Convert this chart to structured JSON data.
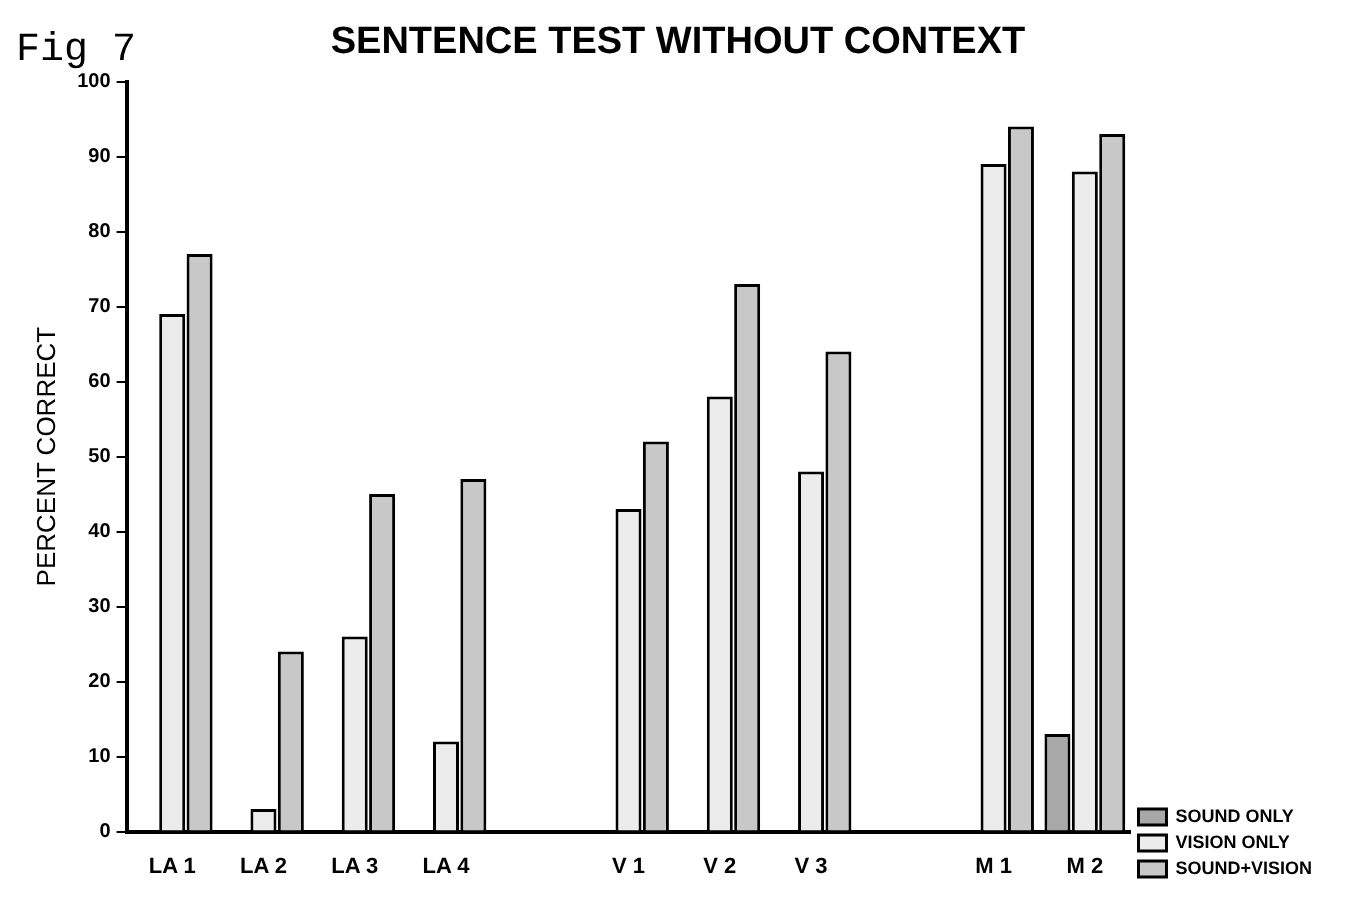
{
  "chart_data": {
    "type": "bar",
    "title": "SENTENCE TEST WITHOUT CONTEXT",
    "ylabel": "PERCENT CORRECT",
    "annotations": [
      "Fig 7"
    ],
    "categories": [
      "LA 1",
      "LA 2",
      "LA 3",
      "LA 4",
      null,
      "V 1",
      "V 2",
      "V 3",
      null,
      "M 1",
      "M 2"
    ],
    "series": [
      {
        "name": "SOUND ONLY",
        "color": "#a8a8a8",
        "values": [
          null,
          null,
          null,
          null,
          null,
          null,
          null,
          null,
          null,
          null,
          13
        ]
      },
      {
        "name": "VISION ONLY",
        "color": "#ececec",
        "values": [
          69,
          3,
          26,
          12,
          null,
          43,
          58,
          48,
          null,
          89,
          88
        ]
      },
      {
        "name": "SOUND+VISION",
        "color": "#c8c8c8",
        "values": [
          77,
          24,
          45,
          47,
          null,
          52,
          73,
          64,
          null,
          94,
          93
        ]
      }
    ],
    "ylim": [
      0,
      100
    ],
    "yticks": [
      0,
      10,
      20,
      30,
      40,
      50,
      60,
      70,
      80,
      90,
      100
    ],
    "grid": false,
    "legend": "bottom right"
  }
}
